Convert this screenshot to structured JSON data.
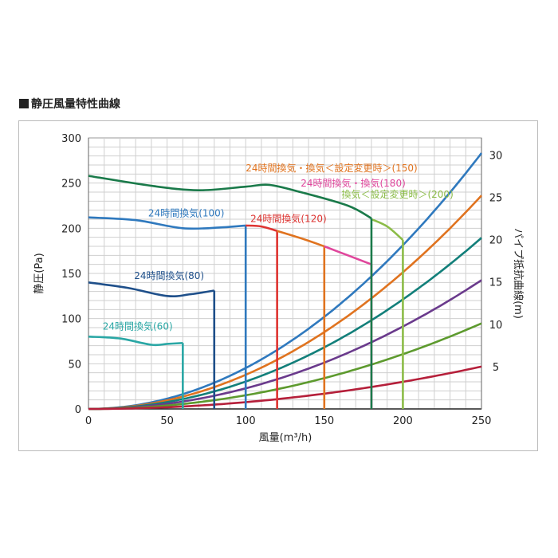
{
  "chart_data": {
    "type": "line",
    "title": "静圧風量特性曲線",
    "xlabel": "風量(m³/h)",
    "ylabel": "静圧(Pa)",
    "y2label": "パイプ抵抗曲線(m)",
    "xlim": [
      0,
      250
    ],
    "ylim": [
      0,
      300
    ],
    "y2lim": [
      0,
      32
    ],
    "x_ticks": [
      0,
      50,
      100,
      150,
      200,
      250
    ],
    "y_ticks": [
      0,
      50,
      100,
      150,
      200,
      250,
      300
    ],
    "y2_ticks": [
      5,
      10,
      15,
      20,
      25,
      30
    ],
    "grid": true,
    "fan_curves": [
      {
        "name": "24時間換気(60)",
        "color": "#2aa7a5",
        "points": [
          [
            0,
            80
          ],
          [
            20,
            78
          ],
          [
            40,
            71
          ],
          [
            50,
            72
          ],
          [
            60,
            73
          ]
        ],
        "cutoff_x": 60,
        "label_x": 9,
        "label_y": 88
      },
      {
        "name": "24時間換気(80)",
        "color": "#1e4f8a",
        "points": [
          [
            0,
            140
          ],
          [
            25,
            134
          ],
          [
            50,
            125
          ],
          [
            65,
            127
          ],
          [
            80,
            131
          ]
        ],
        "cutoff_x": 80,
        "label_x": 29,
        "label_y": 144
      },
      {
        "name": "24時間換気(100)",
        "color": "#2f79be",
        "points": [
          [
            0,
            212
          ],
          [
            30,
            209
          ],
          [
            60,
            200
          ],
          [
            85,
            201
          ],
          [
            100,
            203
          ]
        ],
        "cutoff_x": 100,
        "label_x": 38,
        "label_y": 213
      },
      {
        "name": "24時間換気(120)",
        "color": "#de3330",
        "points": [
          [
            100,
            203
          ],
          [
            110,
            202
          ],
          [
            120,
            197
          ]
        ],
        "cutoff_x": 120,
        "label_x": 103,
        "label_y": 207
      },
      {
        "name": "24時間換気・換気＜設定変更時＞(150)",
        "color": "#e0731f",
        "points": [
          [
            120,
            197
          ],
          [
            135,
            189
          ],
          [
            150,
            180
          ]
        ],
        "cutoff_x": 150,
        "label_x": 100,
        "label_y": 263
      },
      {
        "name": "24時間換気・換気(180)",
        "color": "#e0469c",
        "points": [
          [
            150,
            180
          ],
          [
            165,
            170
          ],
          [
            180,
            160
          ]
        ],
        "cutoff_x": 180,
        "label_x": 135,
        "label_y": 246
      },
      {
        "name": "換気＜設定変更時＞(200)",
        "color": "#8cbc48",
        "points": [
          [
            180,
            210
          ],
          [
            190,
            202
          ],
          [
            200,
            187
          ]
        ],
        "cutoff_x": 200,
        "label_x": 161,
        "label_y": 234
      },
      {
        "name": "",
        "color": "#1a7a4a",
        "points": [
          [
            0,
            258
          ],
          [
            40,
            247
          ],
          [
            70,
            242
          ],
          [
            100,
            246
          ],
          [
            115,
            248
          ],
          [
            135,
            240
          ],
          [
            165,
            225
          ],
          [
            180,
            211
          ]
        ],
        "cutoff_x": 180
      }
    ],
    "pipe_curves": [
      {
        "color": "#2f79be",
        "y_at_250": 30.2
      },
      {
        "color": "#e0731f",
        "y_at_250": 25.2
      },
      {
        "color": "#127f7a",
        "y_at_250": 20.2
      },
      {
        "color": "#6a3a8c",
        "y_at_250": 15.2
      },
      {
        "color": "#5d9a2e",
        "y_at_250": 10.1
      },
      {
        "color": "#b51f3a",
        "y_at_250": 5.0
      }
    ]
  }
}
